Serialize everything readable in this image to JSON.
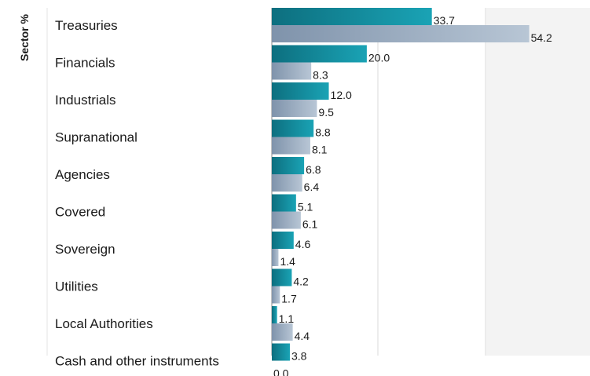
{
  "chart_data": {
    "type": "bar",
    "orientation": "horizontal",
    "ylabel": "Sector %",
    "categories": [
      "Treasuries",
      "Financials",
      "Industrials",
      "Supranational",
      "Agencies",
      "Covered",
      "Sovereign",
      "Utilities",
      "Local Authorities",
      "Cash and other instruments"
    ],
    "series": [
      {
        "values": [
          33.7,
          20.0,
          12.0,
          8.8,
          6.8,
          5.1,
          4.6,
          4.2,
          1.1,
          3.8
        ],
        "color": "#1a8fa0"
      },
      {
        "values": [
          54.2,
          8.3,
          9.5,
          8.1,
          6.4,
          6.1,
          1.4,
          1.7,
          4.4,
          0.0
        ],
        "color": "#9fb3c8"
      }
    ],
    "xlim": [
      0,
      66
    ],
    "grid": true,
    "legend": "none"
  }
}
